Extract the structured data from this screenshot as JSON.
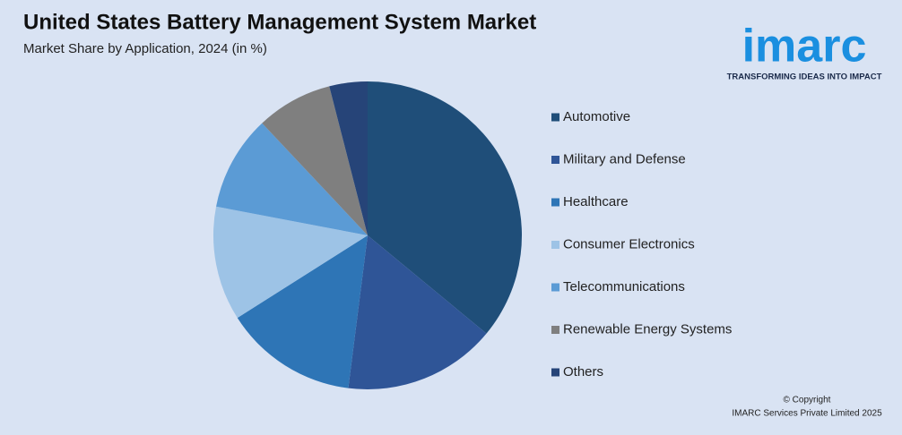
{
  "chart_data": {
    "type": "pie",
    "title": "United States Battery Management System Market",
    "subtitle": "Market Share by Application, 2024 (in %)",
    "categories": [
      "Automotive",
      "Military and Defense",
      "Healthcare",
      "Consumer Electronics",
      "Telecommunications",
      "Renewable Energy Systems",
      "Others"
    ],
    "values": [
      36,
      16,
      14,
      12,
      10,
      8,
      4
    ],
    "colors": [
      "#1f4e79",
      "#2f5597",
      "#2e75b6",
      "#9dc3e6",
      "#5b9bd5",
      "#7f7f7f",
      "#264478"
    ],
    "legend": "right"
  },
  "logo": {
    "name": "imarc",
    "tagline": "TRANSFORMING IDEAS INTO IMPACT"
  },
  "copyright": [
    "© Copyright",
    "IMARC Services Private Limited 2025"
  ]
}
